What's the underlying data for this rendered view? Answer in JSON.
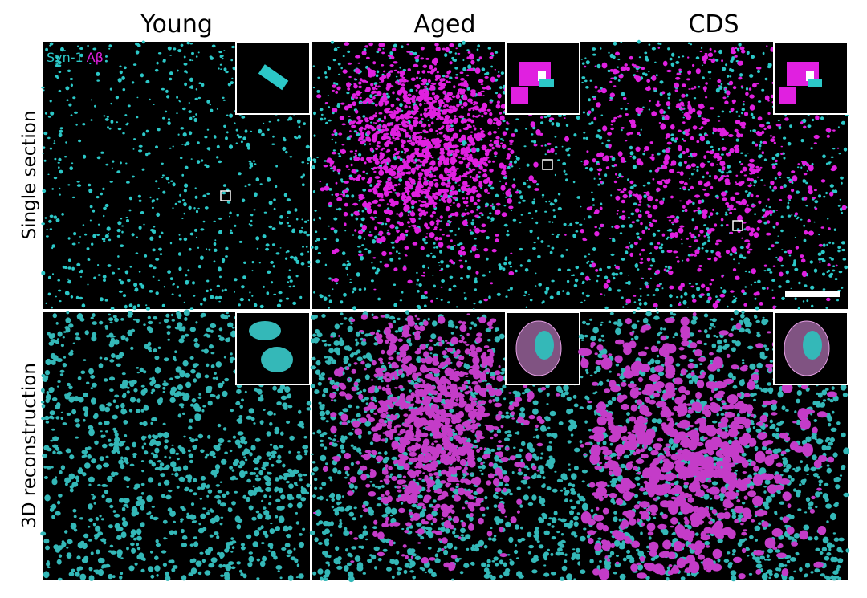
{
  "columns": [
    "Young",
    "Aged",
    "CDS"
  ],
  "rows": [
    "Single section",
    "3D reconstruction"
  ],
  "legend": {
    "syn1": "Syn-1",
    "abeta": "Aβ"
  }
}
